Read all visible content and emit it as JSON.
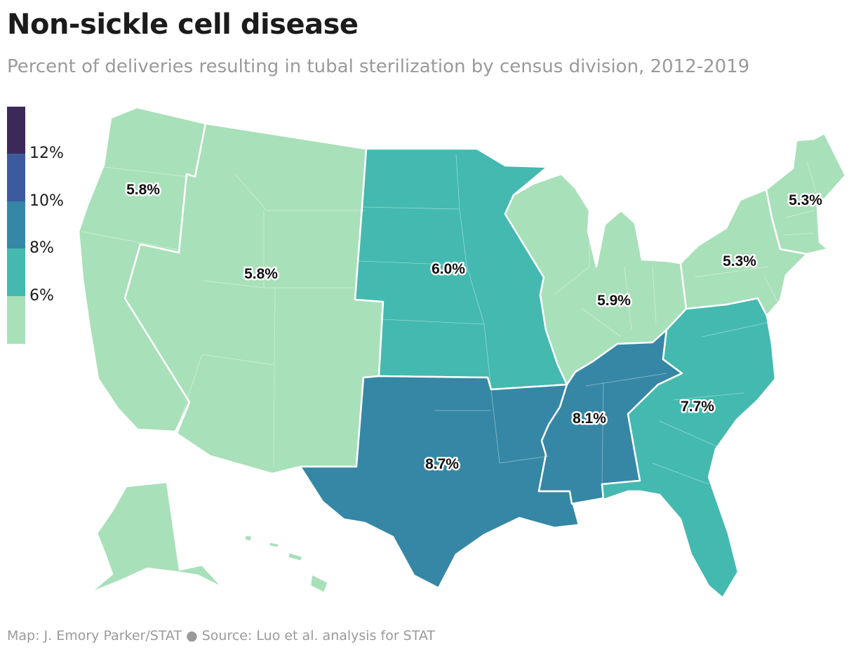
{
  "title": "Non-sickle cell disease",
  "subtitle": "Percent of deliveries resulting in tubal sterilization by census division, 2012-2019",
  "footer": "Map: J. Emory Parker/STAT ● Source: Luo et al. analysis for STAT",
  "legend": {
    "ticks": [
      "12%",
      "10%",
      "8%",
      "6%"
    ],
    "bins": [
      {
        "label": "above 12%",
        "color": "#3b2a59"
      },
      {
        "label": "10% to 12%",
        "color": "#3d5a9e"
      },
      {
        "label": "8% to 10%",
        "color": "#3587a5"
      },
      {
        "label": "6% to 8%",
        "color": "#44b9b0"
      },
      {
        "label": "below 6%",
        "color": "#a8e0b9"
      }
    ]
  },
  "map": {
    "type": "choropleth",
    "geography": "US census divisions",
    "regions": [
      {
        "name": "Pacific",
        "value": "5.8%",
        "color": "#a8e0b9"
      },
      {
        "name": "Mountain",
        "value": "5.8%",
        "color": "#a8e0b9"
      },
      {
        "name": "West North Central",
        "value": "6.0%",
        "color": "#44b9b0"
      },
      {
        "name": "West South Central",
        "value": "8.7%",
        "color": "#3587a5"
      },
      {
        "name": "East North Central",
        "value": "5.9%",
        "color": "#a8e0b9"
      },
      {
        "name": "East South Central",
        "value": "8.1%",
        "color": "#3587a5"
      },
      {
        "name": "South Atlantic",
        "value": "7.7%",
        "color": "#44b9b0"
      },
      {
        "name": "Middle Atlantic",
        "value": "5.3%",
        "color": "#a8e0b9"
      },
      {
        "name": "New England",
        "value": "5.3%",
        "color": "#a8e0b9"
      }
    ]
  }
}
